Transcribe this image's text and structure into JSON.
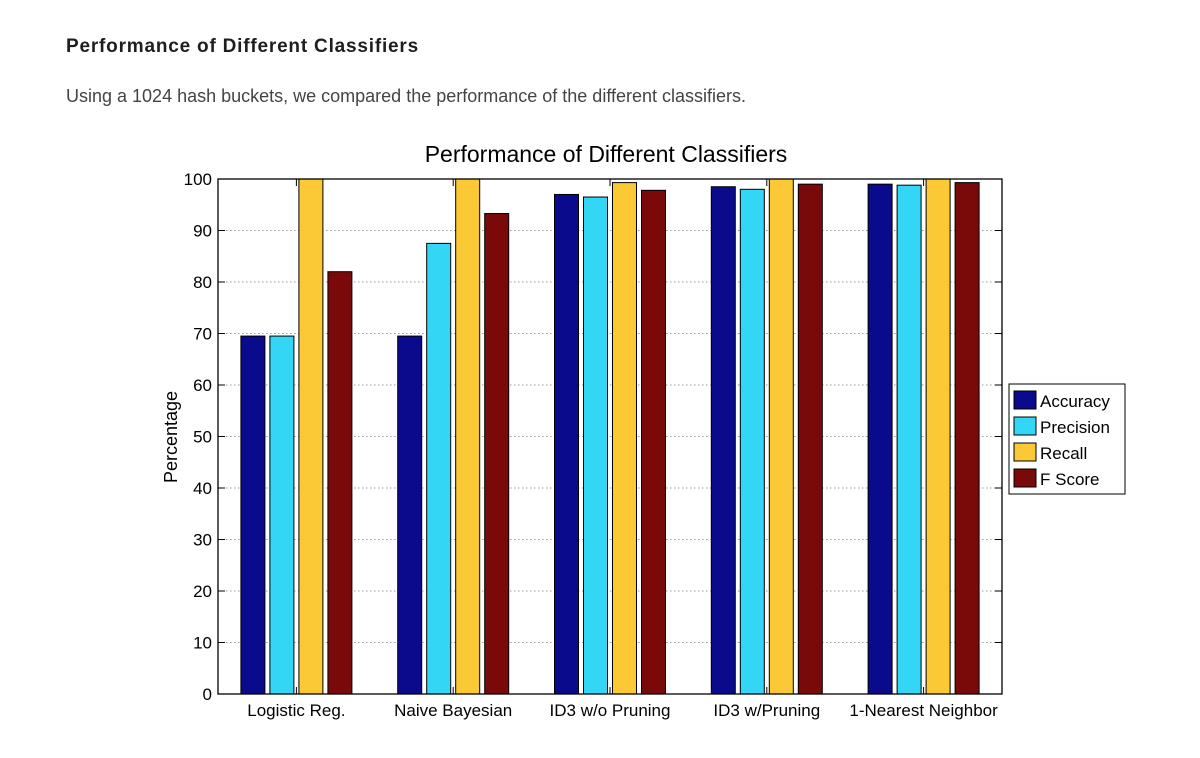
{
  "heading": "Performance of Different Classifiers",
  "intro": "Using a 1024 hash buckets, we compared the performance of the different classifiers.",
  "chart_data": {
    "type": "bar",
    "title": "Performance of Different Classifiers",
    "xlabel": "",
    "ylabel": "Percentage",
    "ylim": [
      0,
      100
    ],
    "yticks": [
      0,
      10,
      20,
      30,
      40,
      50,
      60,
      70,
      80,
      90,
      100
    ],
    "grid": true,
    "legend_position": "right",
    "categories": [
      "Logistic Reg.",
      "Naive Bayesian",
      "ID3 w/o Pruning",
      "ID3 w/Pruning",
      "1-Nearest Neighbor"
    ],
    "series": [
      {
        "name": "Accuracy",
        "color": "#0a0a8c",
        "values": [
          69.5,
          69.5,
          97.0,
          98.5,
          99.0
        ]
      },
      {
        "name": "Precision",
        "color": "#33d6f5",
        "values": [
          69.5,
          87.5,
          96.5,
          98.0,
          98.8
        ]
      },
      {
        "name": "Recall",
        "color": "#fbc935",
        "values": [
          100,
          100,
          99.3,
          100,
          100
        ]
      },
      {
        "name": "F Score",
        "color": "#7a0a0a",
        "values": [
          82.0,
          93.3,
          97.8,
          99.0,
          99.3
        ]
      }
    ]
  }
}
